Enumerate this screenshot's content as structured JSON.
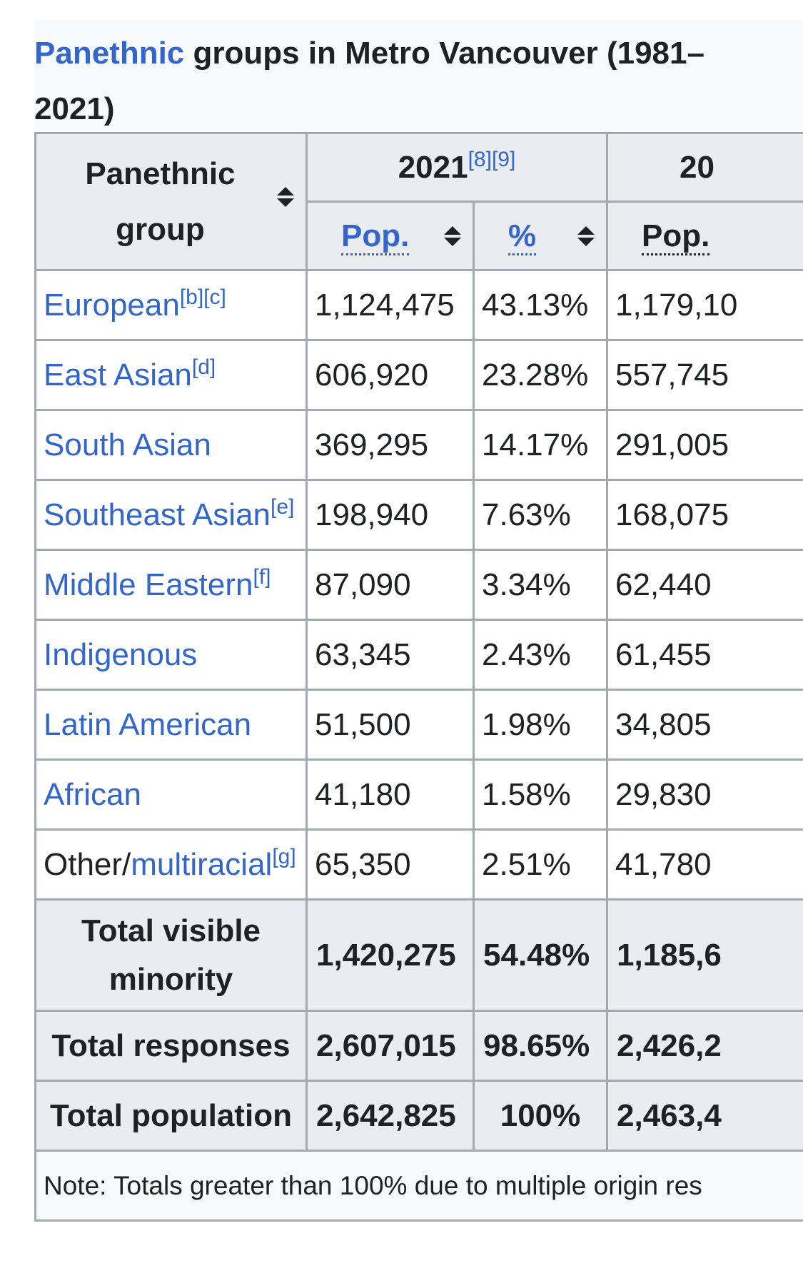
{
  "caption": {
    "link": "Panethnic",
    "rest": " groups in Metro Vancouver (1981–",
    "line2": "2021)"
  },
  "header": {
    "group_line1": "Panethnic",
    "group_line2": "group",
    "year_main": "2021",
    "year_refs": "[8][9]",
    "year_next": "20",
    "pop": "Pop.",
    "pct": "%",
    "pop_next": "Pop."
  },
  "rows": [
    {
      "name": "European",
      "ref": "[b][c]",
      "pop": "1,124,475",
      "pct": "43.13%",
      "pop_next": "1,179,10"
    },
    {
      "name": "East Asian",
      "ref": "[d]",
      "pop": "606,920",
      "pct": "23.28%",
      "pop_next": "557,745"
    },
    {
      "name": "South Asian",
      "ref": "",
      "pop": "369,295",
      "pct": "14.17%",
      "pop_next": "291,005"
    },
    {
      "name": "Southeast Asian",
      "ref": "[e]",
      "pop": "198,940",
      "pct": "7.63%",
      "pop_next": "168,075"
    },
    {
      "name": "Middle Eastern",
      "ref": "[f]",
      "pop": "87,090",
      "pct": "3.34%",
      "pop_next": "62,440"
    },
    {
      "name": "Indigenous",
      "ref": "",
      "pop": "63,345",
      "pct": "2.43%",
      "pop_next": "61,455"
    },
    {
      "name": "Latin American",
      "ref": "",
      "pop": "51,500",
      "pct": "1.98%",
      "pop_next": "34,805"
    },
    {
      "name": "African",
      "ref": "",
      "pop": "41,180",
      "pct": "1.58%",
      "pop_next": "29,830"
    },
    {
      "name_prefix": "Other/",
      "name": "multiracial",
      "ref": "[g]",
      "pop": "65,350",
      "pct": "2.51%",
      "pop_next": "41,780"
    }
  ],
  "totals": [
    {
      "label_line1": "Total visible",
      "label_line2": "minority",
      "pop": "1,420,275",
      "pct": "54.48%",
      "pop_next": "1,185,6"
    },
    {
      "label_line1": "Total responses",
      "label_line2": "",
      "pop": "2,607,015",
      "pct": "98.65%",
      "pop_next": "2,426,2"
    },
    {
      "label_line1": "Total population",
      "label_line2": "",
      "pop": "2,642,825",
      "pct": "100%",
      "pop_next": "2,463,4"
    }
  ],
  "note": "Note: Totals greater than 100% due to multiple origin res"
}
